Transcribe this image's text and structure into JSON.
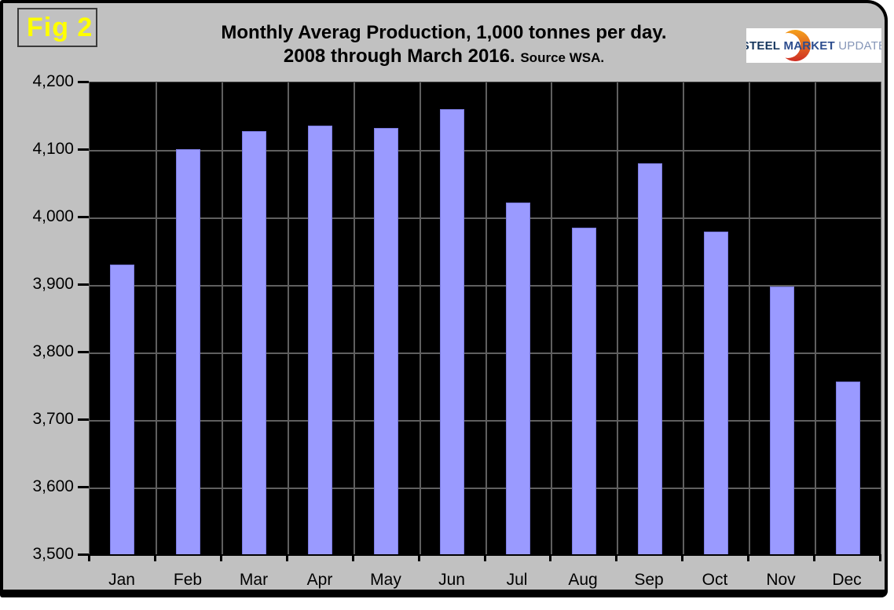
{
  "figure_label": "Fig 2",
  "title": {
    "line1": "Monthly Averag Production, 1,000 tonnes per day.",
    "line2": "2008 through March 2016.",
    "source": "Source WSA."
  },
  "logo": {
    "word1": "STEEL",
    "word2": "MARKET",
    "word3": "UPDATE"
  },
  "colors": {
    "canvas_bg": "#c1c1c1",
    "plot_bg": "#000000",
    "bar_fill": "#9a9aff",
    "bar_border": "#7b7be0",
    "gridline": "#5f5f5f",
    "fig_label": "#ffff00",
    "logo_steel_blue": "#17375e",
    "logo_update_blue": "#8696b8",
    "logo_crescent_top": "#f5a11c",
    "logo_crescent_bottom": "#cf2e24"
  },
  "chart_data": {
    "type": "bar",
    "title": "Monthly Averag Production, 1,000 tonnes per day. 2008 through March 2016. Source WSA.",
    "categories": [
      "Jan",
      "Feb",
      "Mar",
      "Apr",
      "May",
      "Jun",
      "Jul",
      "Aug",
      "Sep",
      "Oct",
      "Nov",
      "Dec"
    ],
    "values": [
      3930,
      4101,
      4128,
      4136,
      4133,
      4160,
      4022,
      3985,
      4080,
      3979,
      3898,
      3757
    ],
    "xlabel": "",
    "ylabel": "",
    "ylim": [
      3500,
      4200
    ],
    "ytick_step": 100,
    "ytick_labels": [
      "3,500",
      "3,600",
      "3,700",
      "3,800",
      "3,900",
      "4,000",
      "4,100",
      "4,200"
    ],
    "grid": true,
    "legend": "none"
  }
}
